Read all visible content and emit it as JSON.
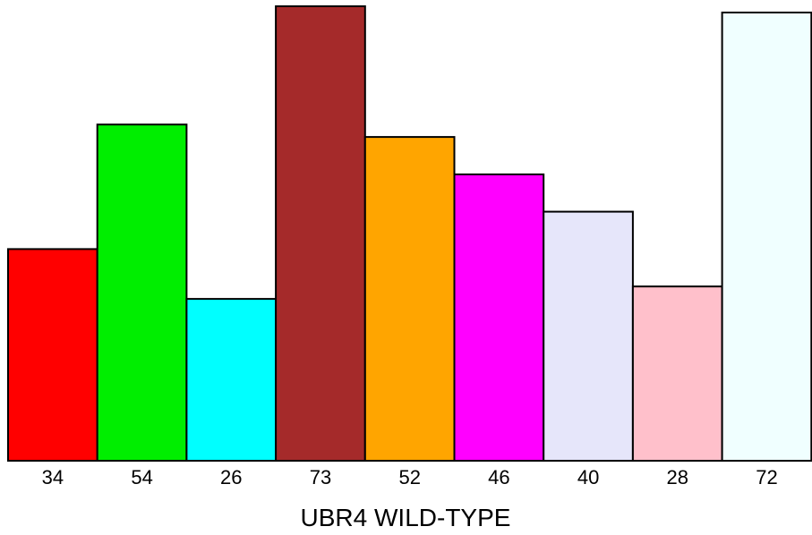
{
  "chart_data": {
    "type": "bar",
    "categories": [
      "34",
      "54",
      "26",
      "73",
      "52",
      "46",
      "40",
      "28",
      "72"
    ],
    "values": [
      34,
      54,
      26,
      73,
      52,
      46,
      40,
      28,
      72
    ],
    "colors": [
      "#ff0000",
      "#00ee00",
      "#00ffff",
      "#a52a2a",
      "#ffa500",
      "#ff00ff",
      "#e6e6fa",
      "#ffc0cb",
      "#f0ffff"
    ],
    "title": "",
    "xlabel": "UBR4 WILD-TYPE",
    "ylabel": "",
    "ylim": [
      0,
      73
    ],
    "grid": false,
    "legend": "none"
  }
}
